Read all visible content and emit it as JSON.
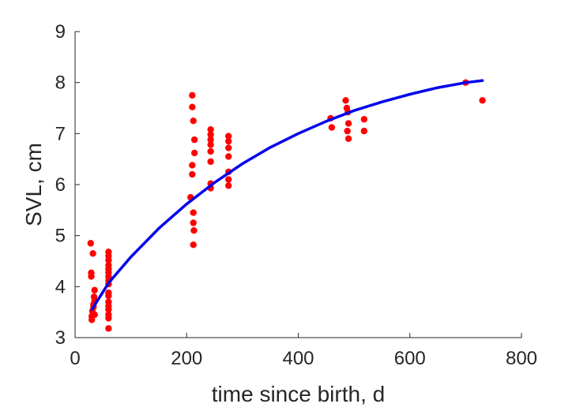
{
  "chart_data": {
    "type": "scatter",
    "title": "",
    "xlabel": "time since birth, d",
    "ylabel": "SVL, cm",
    "xlim": [
      0,
      800
    ],
    "ylim": [
      3,
      9
    ],
    "xticks": [
      0,
      200,
      400,
      600,
      800
    ],
    "yticks": [
      3,
      4,
      5,
      6,
      7,
      8,
      9
    ],
    "grid": false,
    "colors": {
      "points": "#ff0000",
      "fit": "#0000ee",
      "axis": "#262626"
    },
    "series": [
      {
        "type": "scatter",
        "points": [
          [
            28,
            4.85
          ],
          [
            29,
            4.27
          ],
          [
            29,
            4.2
          ],
          [
            30,
            3.42
          ],
          [
            30,
            3.35
          ],
          [
            31,
            3.52
          ],
          [
            32,
            4.65
          ],
          [
            33,
            3.6
          ],
          [
            33,
            3.65
          ],
          [
            34,
            3.8
          ],
          [
            35,
            3.93
          ],
          [
            35,
            3.72
          ],
          [
            35,
            3.45
          ],
          [
            60,
            4.68
          ],
          [
            60,
            4.6
          ],
          [
            60,
            4.52
          ],
          [
            60,
            4.42
          ],
          [
            60,
            4.35
          ],
          [
            60,
            4.28
          ],
          [
            60,
            4.2
          ],
          [
            60,
            4.12
          ],
          [
            60,
            4.05
          ],
          [
            60,
            3.88
          ],
          [
            60,
            3.82
          ],
          [
            60,
            3.7
          ],
          [
            60,
            3.62
          ],
          [
            60,
            3.55
          ],
          [
            60,
            3.45
          ],
          [
            60,
            3.38
          ],
          [
            60,
            3.18
          ],
          [
            207,
            5.75
          ],
          [
            210,
            7.75
          ],
          [
            210,
            7.52
          ],
          [
            210,
            6.38
          ],
          [
            210,
            6.2
          ],
          [
            212,
            7.25
          ],
          [
            212,
            5.45
          ],
          [
            212,
            5.25
          ],
          [
            212,
            4.82
          ],
          [
            213,
            5.1
          ],
          [
            214,
            6.88
          ],
          [
            214,
            6.62
          ],
          [
            243,
            7.08
          ],
          [
            243,
            6.98
          ],
          [
            243,
            6.88
          ],
          [
            243,
            6.78
          ],
          [
            243,
            6.65
          ],
          [
            243,
            6.45
          ],
          [
            243,
            6.02
          ],
          [
            243,
            5.93
          ],
          [
            275,
            6.95
          ],
          [
            275,
            6.85
          ],
          [
            275,
            6.72
          ],
          [
            275,
            6.55
          ],
          [
            275,
            6.25
          ],
          [
            275,
            6.1
          ],
          [
            275,
            5.98
          ],
          [
            458,
            7.3
          ],
          [
            460,
            7.12
          ],
          [
            485,
            7.65
          ],
          [
            487,
            7.5
          ],
          [
            488,
            7.05
          ],
          [
            489,
            7.42
          ],
          [
            490,
            7.2
          ],
          [
            490,
            6.9
          ],
          [
            518,
            7.28
          ],
          [
            518,
            7.05
          ],
          [
            700,
            8.0
          ],
          [
            730,
            7.65
          ]
        ]
      },
      {
        "type": "line",
        "x": [
          30,
          60,
          100,
          150,
          200,
          250,
          300,
          350,
          400,
          450,
          500,
          550,
          600,
          650,
          700,
          730
        ],
        "y": [
          3.55,
          4.07,
          4.58,
          5.14,
          5.62,
          6.04,
          6.41,
          6.73,
          7.0,
          7.24,
          7.45,
          7.62,
          7.77,
          7.9,
          8.0,
          8.04
        ]
      }
    ]
  }
}
